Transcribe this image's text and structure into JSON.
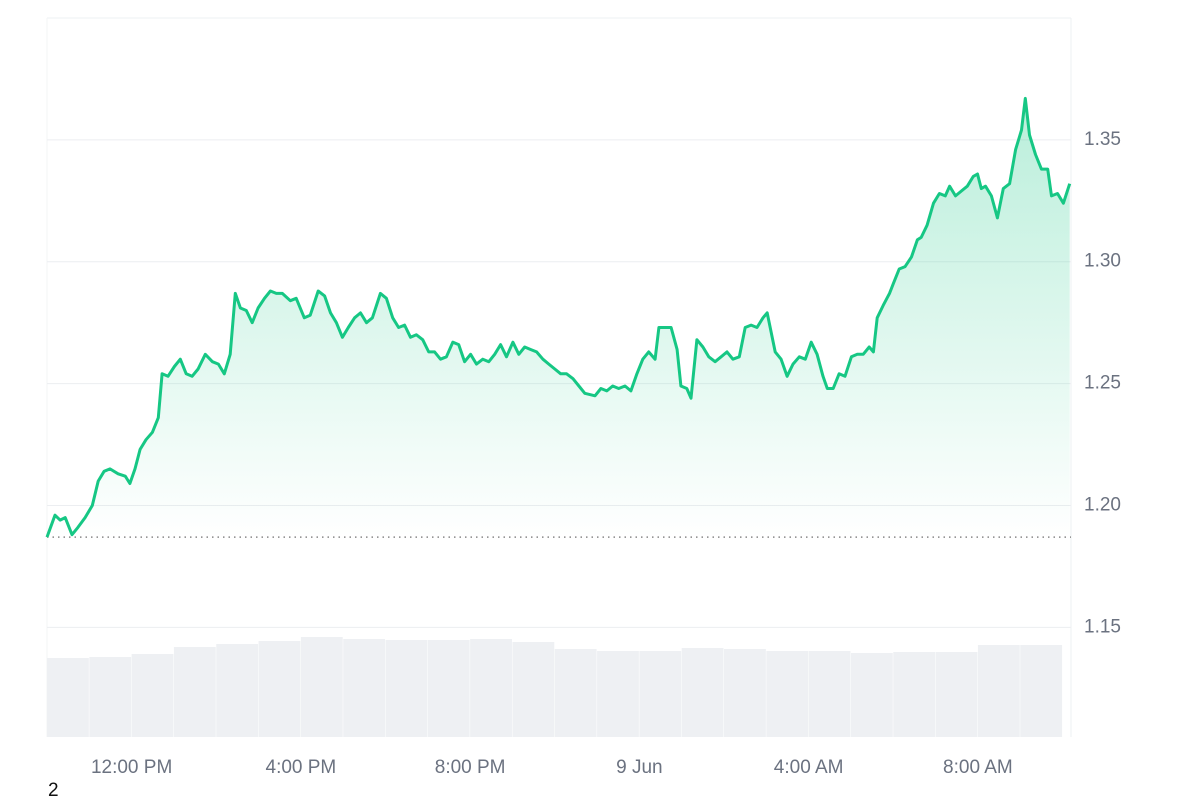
{
  "chart_data": {
    "type": "line",
    "x": [
      10.0,
      10.19,
      10.31,
      10.43,
      10.59,
      10.73,
      10.9,
      11.07,
      11.21,
      11.35,
      11.49,
      11.68,
      11.85,
      11.96,
      12.08,
      12.2,
      12.34,
      12.49,
      12.63,
      12.72,
      12.86,
      13.01,
      13.15,
      13.29,
      13.43,
      13.57,
      13.74,
      13.91,
      14.05,
      14.19,
      14.33,
      14.45,
      14.57,
      14.71,
      14.85,
      14.99,
      15.14,
      15.28,
      15.42,
      15.56,
      15.75,
      15.89,
      16.08,
      16.22,
      16.41,
      16.56,
      16.7,
      16.84,
      16.98,
      17.12,
      17.27,
      17.41,
      17.55,
      17.69,
      17.88,
      18.02,
      18.17,
      18.31,
      18.45,
      18.59,
      18.73,
      18.88,
      19.02,
      19.16,
      19.3,
      19.44,
      19.59,
      19.73,
      19.87,
      20.01,
      20.15,
      20.3,
      20.44,
      20.58,
      20.72,
      20.86,
      21.01,
      21.15,
      21.29,
      21.43,
      21.57,
      21.72,
      21.86,
      22.0,
      22.14,
      22.28,
      22.43,
      22.57,
      22.71,
      22.95,
      23.09,
      23.23,
      23.37,
      23.51,
      23.66,
      23.8,
      23.94,
      24.08,
      24.22,
      24.37,
      24.46,
      24.6,
      24.75,
      24.89,
      24.98,
      25.12,
      25.22,
      25.36,
      25.5,
      25.64,
      25.79,
      25.93,
      26.07,
      26.21,
      26.36,
      26.5,
      26.64,
      26.78,
      26.92,
      27.02,
      27.21,
      27.35,
      27.49,
      27.63,
      27.78,
      27.92,
      28.06,
      28.2,
      28.34,
      28.44,
      28.58,
      28.72,
      28.86,
      29.01,
      29.15,
      29.29,
      29.43,
      29.53,
      29.62,
      29.76,
      29.91,
      30.0,
      30.14,
      30.28,
      30.43,
      30.57,
      30.66,
      30.8,
      30.95,
      31.09,
      31.23,
      31.33,
      31.47,
      31.61,
      31.75,
      31.89,
      31.99,
      32.08,
      32.18,
      32.32,
      32.46,
      32.6,
      32.75,
      32.89,
      33.03,
      33.12,
      33.22,
      33.36,
      33.5,
      33.65,
      33.74,
      33.88,
      34.02,
      34.17
    ],
    "values": [
      1.187,
      1.196,
      1.194,
      1.195,
      1.188,
      1.191,
      1.195,
      1.2,
      1.21,
      1.214,
      1.215,
      1.213,
      1.212,
      1.209,
      1.215,
      1.223,
      1.227,
      1.23,
      1.236,
      1.254,
      1.253,
      1.257,
      1.26,
      1.254,
      1.253,
      1.256,
      1.262,
      1.259,
      1.258,
      1.254,
      1.262,
      1.287,
      1.281,
      1.28,
      1.275,
      1.281,
      1.285,
      1.288,
      1.287,
      1.287,
      1.284,
      1.285,
      1.277,
      1.278,
      1.288,
      1.286,
      1.279,
      1.275,
      1.269,
      1.273,
      1.277,
      1.279,
      1.275,
      1.277,
      1.287,
      1.285,
      1.277,
      1.273,
      1.274,
      1.269,
      1.27,
      1.268,
      1.263,
      1.263,
      1.26,
      1.261,
      1.267,
      1.266,
      1.259,
      1.262,
      1.258,
      1.26,
      1.259,
      1.262,
      1.266,
      1.261,
      1.267,
      1.262,
      1.265,
      1.264,
      1.263,
      1.26,
      1.258,
      1.256,
      1.254,
      1.254,
      1.252,
      1.249,
      1.246,
      1.245,
      1.248,
      1.247,
      1.249,
      1.248,
      1.249,
      1.247,
      1.254,
      1.26,
      1.263,
      1.26,
      1.273,
      1.273,
      1.273,
      1.264,
      1.249,
      1.248,
      1.244,
      1.268,
      1.265,
      1.261,
      1.259,
      1.261,
      1.263,
      1.26,
      1.261,
      1.273,
      1.274,
      1.273,
      1.277,
      1.279,
      1.263,
      1.26,
      1.253,
      1.258,
      1.261,
      1.26,
      1.267,
      1.262,
      1.253,
      1.248,
      1.248,
      1.254,
      1.253,
      1.261,
      1.262,
      1.262,
      1.265,
      1.263,
      1.277,
      1.282,
      1.287,
      1.291,
      1.297,
      1.298,
      1.302,
      1.309,
      1.31,
      1.315,
      1.324,
      1.328,
      1.327,
      1.331,
      1.327,
      1.329,
      1.331,
      1.335,
      1.336,
      1.33,
      1.331,
      1.327,
      1.318,
      1.33,
      1.332,
      1.346,
      1.354,
      1.367,
      1.352,
      1.344,
      1.338,
      1.338,
      1.327,
      1.328,
      1.324,
      1.332
    ],
    "color": "#16c784",
    "xlim": [
      10,
      34.2
    ],
    "xticks": [
      {
        "value": 12,
        "label": "12:00 PM"
      },
      {
        "value": 16,
        "label": "4:00 PM"
      },
      {
        "value": 20,
        "label": "8:00 PM"
      },
      {
        "value": 24,
        "label": "9 Jun"
      },
      {
        "value": 28,
        "label": "4:00 AM"
      },
      {
        "value": 32,
        "label": "8:00 AM"
      }
    ],
    "ylim": [
      1.105,
      1.4
    ],
    "yticks": [
      1.15,
      {
        "value": 1.2,
        "label": "1.20"
      },
      1.25,
      {
        "value": 1.3,
        "label": "1.30"
      },
      1.35
    ],
    "grid": true,
    "reference_line": 1.187,
    "volume": {
      "x": [
        10,
        11,
        12,
        13,
        14,
        15,
        16,
        17,
        18,
        19,
        20,
        21,
        22,
        23,
        24,
        25,
        26,
        27,
        28,
        29,
        30,
        31,
        32,
        33
      ],
      "values": [
        79,
        80,
        83,
        90,
        93,
        96,
        100,
        98,
        97,
        97,
        98,
        95,
        88,
        86,
        86,
        89,
        88,
        86,
        86,
        84,
        85,
        85,
        92,
        92
      ],
      "lim": [
        0,
        120
      ],
      "color": "#eef0f3"
    },
    "footnote": "2"
  }
}
